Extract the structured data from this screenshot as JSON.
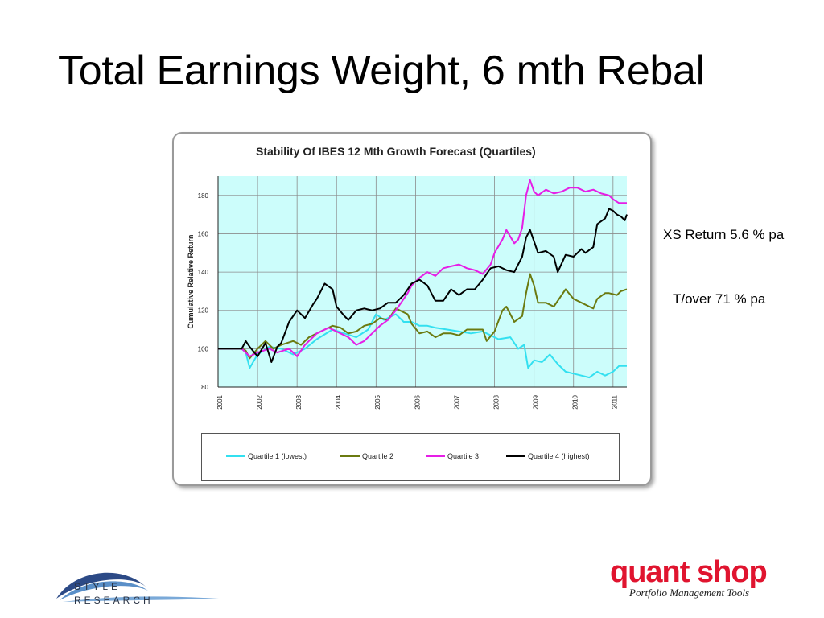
{
  "slide": {
    "title": "Total Earnings Weight, 6 mth Rebal",
    "notes": [
      "XS Return 5.6 % pa",
      "T/over 71 % pa"
    ]
  },
  "colors": {
    "plot_background": "#ccfdfb",
    "grid": "#8c8c8c",
    "quartile_1": "#33e0f0",
    "quartile_2": "#6b7a10",
    "quartile_3": "#e61ee6",
    "quartile_4": "#000000",
    "quant_shop_red": "#e0142f"
  },
  "logos": {
    "style_research": [
      "STYLE",
      "RESEARCH"
    ],
    "quant_shop": "quant shop",
    "quant_shop_tagline": "Portfolio Management Tools"
  },
  "chart_data": {
    "type": "line",
    "title": "Stability Of IBES 12 Mth Growth Forecast (Quartiles)",
    "ylabel": "Cumulative Relative Return",
    "xlabel": "",
    "ylim": [
      80,
      190
    ],
    "yticks": [
      80,
      100,
      120,
      140,
      160,
      180
    ],
    "xlim": [
      2001,
      2011.35
    ],
    "xticks": [
      "2001",
      "2002",
      "2003",
      "2004",
      "2005",
      "2006",
      "2007",
      "2008",
      "2009",
      "2010",
      "2011"
    ],
    "grid": true,
    "legend": "bottom",
    "series": [
      {
        "name": "Quartile 1 (lowest)",
        "color": "#33e0f0",
        "points": [
          [
            2001,
            100
          ],
          [
            2001.6,
            100
          ],
          [
            2001.7,
            98
          ],
          [
            2001.8,
            90
          ],
          [
            2002,
            97
          ],
          [
            2002.3,
            101
          ],
          [
            2002.6,
            100
          ],
          [
            2002.9,
            97
          ],
          [
            2003.2,
            100
          ],
          [
            2003.5,
            105
          ],
          [
            2003.9,
            110
          ],
          [
            2004.2,
            108
          ],
          [
            2004.5,
            106
          ],
          [
            2004.8,
            110
          ],
          [
            2005.0,
            118
          ],
          [
            2005.2,
            115
          ],
          [
            2005.5,
            118
          ],
          [
            2005.7,
            114
          ],
          [
            2005.9,
            114
          ],
          [
            2006.1,
            112
          ],
          [
            2006.3,
            112
          ],
          [
            2006.5,
            111
          ],
          [
            2006.8,
            110
          ],
          [
            2007.1,
            109
          ],
          [
            2007.4,
            108
          ],
          [
            2007.7,
            109
          ],
          [
            2007.9,
            107
          ],
          [
            2008.1,
            105
          ],
          [
            2008.4,
            106
          ],
          [
            2008.6,
            100
          ],
          [
            2008.75,
            102
          ],
          [
            2008.85,
            90
          ],
          [
            2009.0,
            94
          ],
          [
            2009.2,
            93
          ],
          [
            2009.4,
            97
          ],
          [
            2009.6,
            92
          ],
          [
            2009.8,
            88
          ],
          [
            2010.0,
            87
          ],
          [
            2010.2,
            86
          ],
          [
            2010.4,
            85
          ],
          [
            2010.6,
            88
          ],
          [
            2010.8,
            86
          ],
          [
            2011.0,
            88
          ],
          [
            2011.15,
            91
          ],
          [
            2011.35,
            91
          ]
        ]
      },
      {
        "name": "Quartile 2",
        "color": "#6b7a10",
        "points": [
          [
            2001,
            100
          ],
          [
            2001.6,
            100
          ],
          [
            2001.7,
            99
          ],
          [
            2001.8,
            95
          ],
          [
            2002,
            100
          ],
          [
            2002.2,
            104
          ],
          [
            2002.4,
            100
          ],
          [
            2002.6,
            102
          ],
          [
            2002.9,
            104
          ],
          [
            2003.1,
            102
          ],
          [
            2003.3,
            106
          ],
          [
            2003.5,
            108
          ],
          [
            2003.7,
            110
          ],
          [
            2003.9,
            112
          ],
          [
            2004.1,
            111
          ],
          [
            2004.3,
            108
          ],
          [
            2004.5,
            109
          ],
          [
            2004.7,
            112
          ],
          [
            2004.9,
            113
          ],
          [
            2005.1,
            116
          ],
          [
            2005.3,
            115
          ],
          [
            2005.5,
            121
          ],
          [
            2005.6,
            120
          ],
          [
            2005.8,
            118
          ],
          [
            2005.9,
            113
          ],
          [
            2006.1,
            108
          ],
          [
            2006.3,
            109
          ],
          [
            2006.5,
            106
          ],
          [
            2006.7,
            108
          ],
          [
            2006.9,
            108
          ],
          [
            2007.1,
            107
          ],
          [
            2007.3,
            110
          ],
          [
            2007.5,
            110
          ],
          [
            2007.7,
            110
          ],
          [
            2007.8,
            104
          ],
          [
            2008.0,
            109
          ],
          [
            2008.2,
            120
          ],
          [
            2008.3,
            122
          ],
          [
            2008.5,
            114
          ],
          [
            2008.7,
            117
          ],
          [
            2008.8,
            129
          ],
          [
            2008.9,
            139
          ],
          [
            2009.0,
            133
          ],
          [
            2009.1,
            124
          ],
          [
            2009.3,
            124
          ],
          [
            2009.5,
            122
          ],
          [
            2009.7,
            128
          ],
          [
            2009.8,
            131
          ],
          [
            2010.0,
            126
          ],
          [
            2010.2,
            124
          ],
          [
            2010.4,
            122
          ],
          [
            2010.5,
            121
          ],
          [
            2010.6,
            126
          ],
          [
            2010.8,
            129
          ],
          [
            2010.9,
            129
          ],
          [
            2011.1,
            128
          ],
          [
            2011.2,
            130
          ],
          [
            2011.35,
            131
          ]
        ]
      },
      {
        "name": "Quartile 3",
        "color": "#e61ee6",
        "points": [
          [
            2001,
            100
          ],
          [
            2001.6,
            100
          ],
          [
            2001.7,
            98
          ],
          [
            2001.8,
            96
          ],
          [
            2002,
            98
          ],
          [
            2002.3,
            100
          ],
          [
            2002.5,
            98
          ],
          [
            2002.8,
            100
          ],
          [
            2003.0,
            96
          ],
          [
            2003.2,
            102
          ],
          [
            2003.5,
            108
          ],
          [
            2003.8,
            111
          ],
          [
            2004.1,
            108
          ],
          [
            2004.3,
            106
          ],
          [
            2004.5,
            102
          ],
          [
            2004.7,
            104
          ],
          [
            2004.9,
            108
          ],
          [
            2005.1,
            112
          ],
          [
            2005.3,
            115
          ],
          [
            2005.5,
            120
          ],
          [
            2005.6,
            123
          ],
          [
            2005.8,
            129
          ],
          [
            2005.9,
            133
          ],
          [
            2006.1,
            137
          ],
          [
            2006.3,
            140
          ],
          [
            2006.5,
            138
          ],
          [
            2006.7,
            142
          ],
          [
            2006.9,
            143
          ],
          [
            2007.1,
            144
          ],
          [
            2007.3,
            142
          ],
          [
            2007.5,
            141
          ],
          [
            2007.7,
            139
          ],
          [
            2007.9,
            144
          ],
          [
            2008.0,
            150
          ],
          [
            2008.2,
            157
          ],
          [
            2008.3,
            162
          ],
          [
            2008.5,
            155
          ],
          [
            2008.6,
            157
          ],
          [
            2008.7,
            163
          ],
          [
            2008.8,
            180
          ],
          [
            2008.9,
            188
          ],
          [
            2009.0,
            182
          ],
          [
            2009.1,
            180
          ],
          [
            2009.3,
            183
          ],
          [
            2009.5,
            181
          ],
          [
            2009.7,
            182
          ],
          [
            2009.9,
            184
          ],
          [
            2010.1,
            184
          ],
          [
            2010.3,
            182
          ],
          [
            2010.5,
            183
          ],
          [
            2010.7,
            181
          ],
          [
            2010.9,
            180
          ],
          [
            2011.0,
            178
          ],
          [
            2011.15,
            176
          ],
          [
            2011.35,
            176
          ]
        ]
      },
      {
        "name": "Quartile 4 (highest)",
        "color": "#000000",
        "points": [
          [
            2001,
            100
          ],
          [
            2001.6,
            100
          ],
          [
            2001.7,
            104
          ],
          [
            2001.8,
            101
          ],
          [
            2002,
            96
          ],
          [
            2002.2,
            103
          ],
          [
            2002.35,
            93
          ],
          [
            2002.5,
            101
          ],
          [
            2002.6,
            103
          ],
          [
            2002.8,
            114
          ],
          [
            2003.0,
            120
          ],
          [
            2003.2,
            116
          ],
          [
            2003.4,
            123
          ],
          [
            2003.5,
            126
          ],
          [
            2003.6,
            130
          ],
          [
            2003.7,
            134
          ],
          [
            2003.9,
            131
          ],
          [
            2004.0,
            122
          ],
          [
            2004.2,
            117
          ],
          [
            2004.3,
            115
          ],
          [
            2004.5,
            120
          ],
          [
            2004.7,
            121
          ],
          [
            2004.9,
            120
          ],
          [
            2005.1,
            121
          ],
          [
            2005.3,
            124
          ],
          [
            2005.5,
            124
          ],
          [
            2005.7,
            128
          ],
          [
            2005.9,
            134
          ],
          [
            2006.1,
            136
          ],
          [
            2006.3,
            133
          ],
          [
            2006.5,
            125
          ],
          [
            2006.7,
            125
          ],
          [
            2006.9,
            131
          ],
          [
            2007.1,
            128
          ],
          [
            2007.3,
            131
          ],
          [
            2007.5,
            131
          ],
          [
            2007.7,
            136
          ],
          [
            2007.9,
            142
          ],
          [
            2008.1,
            143
          ],
          [
            2008.3,
            141
          ],
          [
            2008.5,
            140
          ],
          [
            2008.7,
            148
          ],
          [
            2008.8,
            158
          ],
          [
            2008.9,
            162
          ],
          [
            2009.0,
            156
          ],
          [
            2009.1,
            150
          ],
          [
            2009.3,
            151
          ],
          [
            2009.5,
            148
          ],
          [
            2009.6,
            140
          ],
          [
            2009.8,
            149
          ],
          [
            2010.0,
            148
          ],
          [
            2010.2,
            152
          ],
          [
            2010.3,
            150
          ],
          [
            2010.5,
            153
          ],
          [
            2010.6,
            165
          ],
          [
            2010.8,
            168
          ],
          [
            2010.9,
            173
          ],
          [
            2011.0,
            172
          ],
          [
            2011.1,
            170
          ],
          [
            2011.2,
            169
          ],
          [
            2011.3,
            167
          ],
          [
            2011.35,
            170
          ]
        ]
      }
    ]
  }
}
